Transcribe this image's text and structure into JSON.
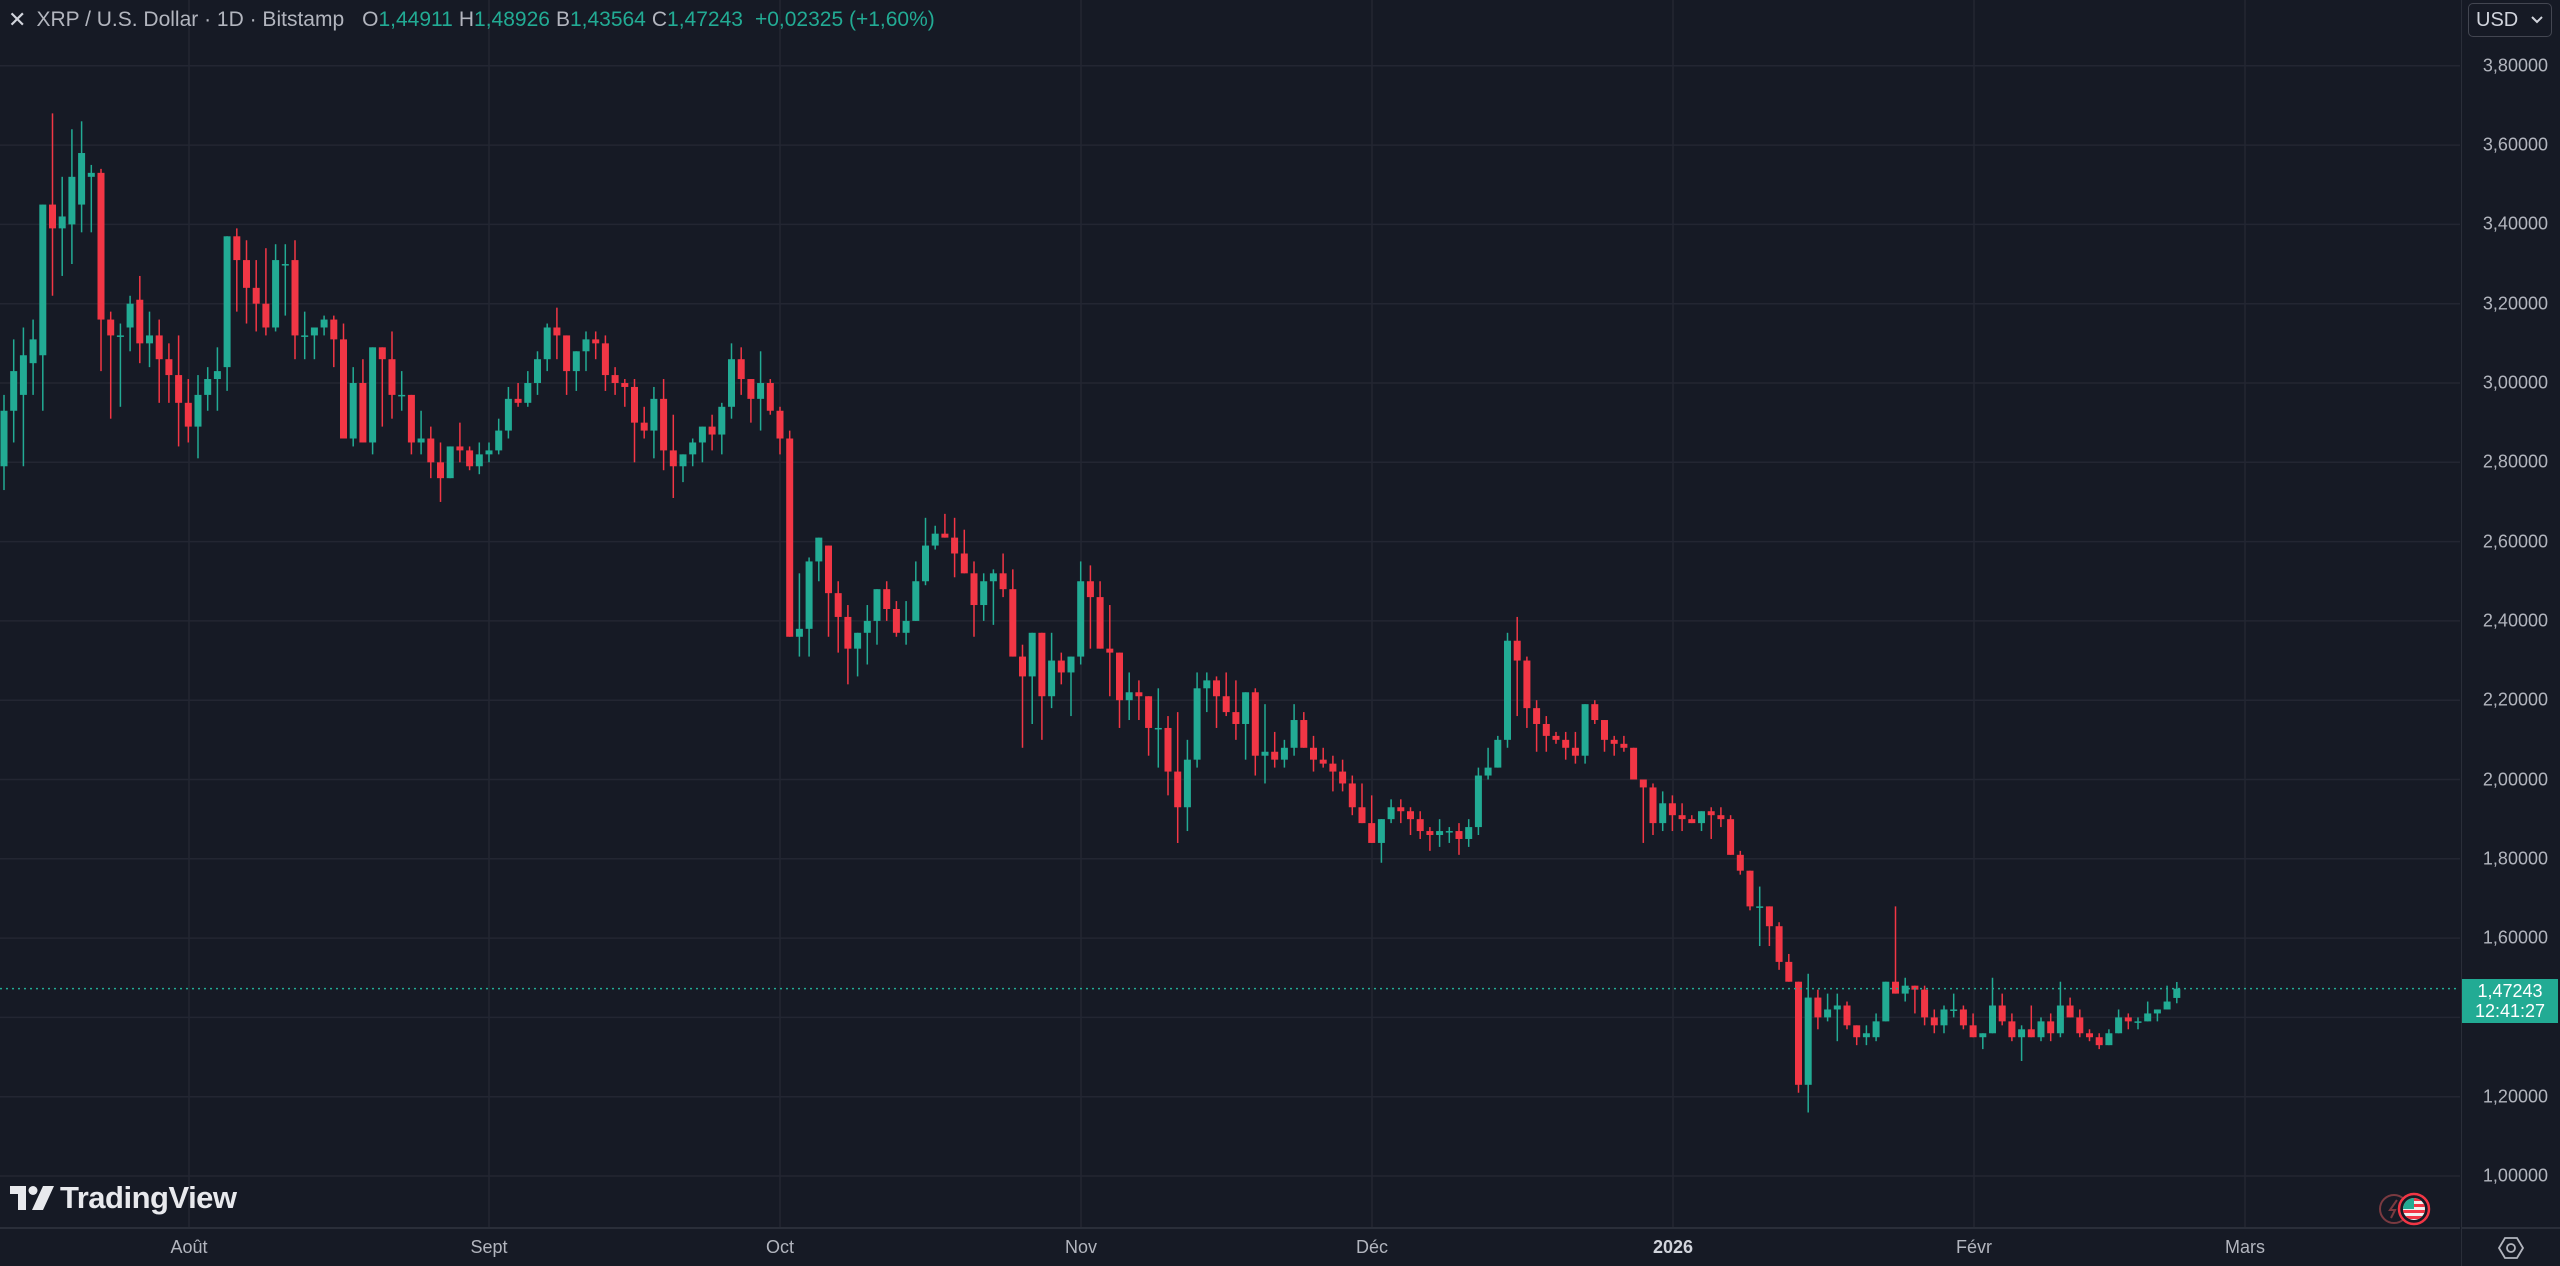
{
  "header": {
    "close_icon": "x-icon",
    "title": "XRP / U.S. Dollar · 1D · Bitstamp",
    "open_label": "O",
    "open_value": "1,44911",
    "high_label": "H",
    "high_value": "1,48926",
    "low_label": "B",
    "low_value": "1,43564",
    "close_label": "C",
    "close_value": "1,47243",
    "change": "+0,02325 (+1,60%)"
  },
  "price_axis": {
    "currency": "USD",
    "ticks": [
      "3,80000",
      "3,60000",
      "3,40000",
      "3,20000",
      "3,00000",
      "2,80000",
      "2,60000",
      "2,40000",
      "2,20000",
      "2,00000",
      "1,80000",
      "1,60000",
      "1,20000",
      "1,00000"
    ],
    "current_price": "1,47243",
    "countdown": "12:41:27"
  },
  "time_axis": {
    "ticks": [
      {
        "label": "Août",
        "bold": false
      },
      {
        "label": "Sept",
        "bold": false
      },
      {
        "label": "Oct",
        "bold": false
      },
      {
        "label": "Nov",
        "bold": false
      },
      {
        "label": "Déc",
        "bold": false
      },
      {
        "label": "2026",
        "bold": true
      },
      {
        "label": "Févr",
        "bold": false
      },
      {
        "label": "Mars",
        "bold": false
      }
    ]
  },
  "branding": {
    "logo_text": "TradingView"
  },
  "colors": {
    "up": "#22ab94",
    "down": "#f23645",
    "background": "#161a25",
    "grid": "#232632",
    "text": "#b2b5be"
  },
  "chart_data": {
    "type": "candlestick",
    "title": "XRP / U.S. Dollar · 1D · Bitstamp",
    "xlabel": "",
    "ylabel": "USD",
    "ylim": [
      0.93,
      3.87
    ],
    "grid": true,
    "x_ticks": [
      "Août",
      "Sept",
      "Oct",
      "Nov",
      "Déc",
      "2026",
      "Févr",
      "Mars"
    ],
    "y_ticks": [
      1.0,
      1.2,
      1.4,
      1.6,
      1.8,
      2.0,
      2.2,
      2.4,
      2.6,
      2.8,
      3.0,
      3.2,
      3.4,
      3.6,
      3.8
    ],
    "last": {
      "open": 1.44911,
      "high": 1.48926,
      "low": 1.43564,
      "close": 1.47243,
      "change": 0.02325,
      "change_pct": 1.6
    },
    "ohlc": [
      [
        2.79,
        2.97,
        2.73,
        2.93
      ],
      [
        2.93,
        3.11,
        2.85,
        3.03
      ],
      [
        2.97,
        3.14,
        2.79,
        3.07
      ],
      [
        3.05,
        3.16,
        2.97,
        3.11
      ],
      [
        3.07,
        3.23,
        2.93,
        3.45
      ],
      [
        3.45,
        3.68,
        3.22,
        3.39
      ],
      [
        3.39,
        3.52,
        3.27,
        3.42
      ],
      [
        3.4,
        3.64,
        3.3,
        3.52
      ],
      [
        3.45,
        3.66,
        3.38,
        3.58
      ],
      [
        3.52,
        3.55,
        3.38,
        3.53
      ],
      [
        3.53,
        3.54,
        3.03,
        3.16
      ],
      [
        3.16,
        3.18,
        2.91,
        3.12
      ],
      [
        3.12,
        3.15,
        2.94,
        3.12
      ],
      [
        3.14,
        3.22,
        3.08,
        3.2
      ],
      [
        3.21,
        3.27,
        3.05,
        3.1
      ],
      [
        3.1,
        3.18,
        3.04,
        3.12
      ],
      [
        3.12,
        3.16,
        2.95,
        3.06
      ],
      [
        3.06,
        3.1,
        2.95,
        3.02
      ],
      [
        3.02,
        3.12,
        2.84,
        2.95
      ],
      [
        2.95,
        3.01,
        2.85,
        2.89
      ],
      [
        2.89,
        3.02,
        2.81,
        2.97
      ],
      [
        2.97,
        3.04,
        2.93,
        3.01
      ],
      [
        3.01,
        3.09,
        2.93,
        3.03
      ],
      [
        3.04,
        3.37,
        2.98,
        3.37
      ],
      [
        3.37,
        3.39,
        3.18,
        3.31
      ],
      [
        3.31,
        3.36,
        3.15,
        3.24
      ],
      [
        3.24,
        3.31,
        3.13,
        3.2
      ],
      [
        3.2,
        3.34,
        3.12,
        3.14
      ],
      [
        3.14,
        3.35,
        3.13,
        3.31
      ],
      [
        3.3,
        3.35,
        3.17,
        3.3
      ],
      [
        3.31,
        3.36,
        3.06,
        3.12
      ],
      [
        3.12,
        3.18,
        3.06,
        3.12
      ],
      [
        3.12,
        3.14,
        3.06,
        3.14
      ],
      [
        3.14,
        3.17,
        3.12,
        3.16
      ],
      [
        3.16,
        3.17,
        3.04,
        3.11
      ],
      [
        3.11,
        3.15,
        2.96,
        2.86
      ],
      [
        2.86,
        3.04,
        2.84,
        3.0
      ],
      [
        3.0,
        3.06,
        2.91,
        2.85
      ],
      [
        2.85,
        3.08,
        2.82,
        3.09
      ],
      [
        3.09,
        3.05,
        2.89,
        3.06
      ],
      [
        3.06,
        3.13,
        2.91,
        2.97
      ],
      [
        2.97,
        3.03,
        2.93,
        2.97
      ],
      [
        2.97,
        2.97,
        2.82,
        2.85
      ],
      [
        2.85,
        2.93,
        2.82,
        2.86
      ],
      [
        2.86,
        2.89,
        2.76,
        2.8
      ],
      [
        2.8,
        2.85,
        2.7,
        2.76
      ],
      [
        2.76,
        2.81,
        2.76,
        2.84
      ],
      [
        2.84,
        2.9,
        2.8,
        2.83
      ],
      [
        2.83,
        2.84,
        2.78,
        2.79
      ],
      [
        2.79,
        2.85,
        2.77,
        2.82
      ],
      [
        2.82,
        2.85,
        2.8,
        2.83
      ],
      [
        2.83,
        2.91,
        2.82,
        2.88
      ],
      [
        2.88,
        2.99,
        2.86,
        2.96
      ],
      [
        2.96,
        3.0,
        2.94,
        2.95
      ],
      [
        2.95,
        3.03,
        2.94,
        3.0
      ],
      [
        3.0,
        3.08,
        2.97,
        3.06
      ],
      [
        3.06,
        3.15,
        3.03,
        3.14
      ],
      [
        3.14,
        3.19,
        3.06,
        3.12
      ],
      [
        3.12,
        3.1,
        2.97,
        3.03
      ],
      [
        3.03,
        3.08,
        2.98,
        3.08
      ],
      [
        3.08,
        3.13,
        3.03,
        3.11
      ],
      [
        3.11,
        3.13,
        3.06,
        3.1
      ],
      [
        3.1,
        3.12,
        2.98,
        3.02
      ],
      [
        3.02,
        3.04,
        2.97,
        3.0
      ],
      [
        3.0,
        3.01,
        2.94,
        2.99
      ],
      [
        2.99,
        3.01,
        2.8,
        2.9
      ],
      [
        2.9,
        2.94,
        2.86,
        2.88
      ],
      [
        2.88,
        2.99,
        2.81,
        2.96
      ],
      [
        2.96,
        3.01,
        2.78,
        2.83
      ],
      [
        2.83,
        2.92,
        2.71,
        2.79
      ],
      [
        2.79,
        2.82,
        2.75,
        2.82
      ],
      [
        2.82,
        2.86,
        2.79,
        2.85
      ],
      [
        2.85,
        2.88,
        2.8,
        2.89
      ],
      [
        2.89,
        2.92,
        2.83,
        2.87
      ],
      [
        2.87,
        2.95,
        2.82,
        2.94
      ],
      [
        2.94,
        3.1,
        2.91,
        3.06
      ],
      [
        3.06,
        3.09,
        2.97,
        3.01
      ],
      [
        3.01,
        3.01,
        2.9,
        2.96
      ],
      [
        2.96,
        3.08,
        2.88,
        3.0
      ],
      [
        3.0,
        3.01,
        2.92,
        2.93
      ],
      [
        2.93,
        2.94,
        2.82,
        2.86
      ],
      [
        2.86,
        2.88,
        2.48,
        2.36
      ],
      [
        2.36,
        2.52,
        2.31,
        2.38
      ],
      [
        2.38,
        2.56,
        2.31,
        2.55
      ],
      [
        2.55,
        2.61,
        2.5,
        2.61
      ],
      [
        2.59,
        2.57,
        2.36,
        2.47
      ],
      [
        2.47,
        2.5,
        2.32,
        2.41
      ],
      [
        2.41,
        2.44,
        2.24,
        2.33
      ],
      [
        2.33,
        2.36,
        2.26,
        2.37
      ],
      [
        2.37,
        2.44,
        2.29,
        2.4
      ],
      [
        2.4,
        2.46,
        2.34,
        2.48
      ],
      [
        2.48,
        2.5,
        2.4,
        2.43
      ],
      [
        2.43,
        2.45,
        2.36,
        2.37
      ],
      [
        2.37,
        2.45,
        2.34,
        2.4
      ],
      [
        2.4,
        2.55,
        2.41,
        2.5
      ],
      [
        2.5,
        2.66,
        2.49,
        2.59
      ],
      [
        2.59,
        2.64,
        2.58,
        2.62
      ],
      [
        2.62,
        2.67,
        2.61,
        2.61
      ],
      [
        2.61,
        2.66,
        2.51,
        2.57
      ],
      [
        2.57,
        2.63,
        2.54,
        2.52
      ],
      [
        2.52,
        2.55,
        2.36,
        2.44
      ],
      [
        2.44,
        2.52,
        2.4,
        2.5
      ],
      [
        2.5,
        2.53,
        2.39,
        2.52
      ],
      [
        2.52,
        2.57,
        2.46,
        2.48
      ],
      [
        2.48,
        2.53,
        2.31,
        2.31
      ],
      [
        2.31,
        2.34,
        2.08,
        2.26
      ],
      [
        2.26,
        2.37,
        2.14,
        2.37
      ],
      [
        2.37,
        2.37,
        2.1,
        2.21
      ],
      [
        2.21,
        2.37,
        2.18,
        2.3
      ],
      [
        2.3,
        2.32,
        2.24,
        2.27
      ],
      [
        2.27,
        2.3,
        2.16,
        2.31
      ],
      [
        2.31,
        2.55,
        2.29,
        2.5
      ],
      [
        2.5,
        2.54,
        2.33,
        2.46
      ],
      [
        2.46,
        2.5,
        2.34,
        2.33
      ],
      [
        2.33,
        2.44,
        2.21,
        2.32
      ],
      [
        2.32,
        2.27,
        2.13,
        2.2
      ],
      [
        2.2,
        2.27,
        2.15,
        2.22
      ],
      [
        2.22,
        2.25,
        2.15,
        2.21
      ],
      [
        2.21,
        2.21,
        2.06,
        2.13
      ],
      [
        2.13,
        2.23,
        2.03,
        2.13
      ],
      [
        2.13,
        2.16,
        1.96,
        2.02
      ],
      [
        2.02,
        2.17,
        1.84,
        1.93
      ],
      [
        1.93,
        2.1,
        1.87,
        2.05
      ],
      [
        2.05,
        2.27,
        2.03,
        2.23
      ],
      [
        2.23,
        2.27,
        2.17,
        2.25
      ],
      [
        2.25,
        2.26,
        2.13,
        2.21
      ],
      [
        2.21,
        2.27,
        2.16,
        2.17
      ],
      [
        2.17,
        2.25,
        2.1,
        2.14
      ],
      [
        2.14,
        2.17,
        2.05,
        2.22
      ],
      [
        2.22,
        2.23,
        2.01,
        2.06
      ],
      [
        2.06,
        2.19,
        1.99,
        2.07
      ],
      [
        2.07,
        2.12,
        2.03,
        2.05
      ],
      [
        2.05,
        2.1,
        2.03,
        2.08
      ],
      [
        2.08,
        2.19,
        2.06,
        2.15
      ],
      [
        2.15,
        2.17,
        2.09,
        2.08
      ],
      [
        2.08,
        2.11,
        2.02,
        2.05
      ],
      [
        2.05,
        2.08,
        2.03,
        2.04
      ],
      [
        2.04,
        2.06,
        1.97,
        2.02
      ],
      [
        2.02,
        2.05,
        1.97,
        1.99
      ],
      [
        1.99,
        2.01,
        1.91,
        1.93
      ],
      [
        1.93,
        1.99,
        1.9,
        1.89
      ],
      [
        1.89,
        1.96,
        1.84,
        1.84
      ],
      [
        1.84,
        1.9,
        1.79,
        1.9
      ],
      [
        1.9,
        1.95,
        1.89,
        1.93
      ],
      [
        1.93,
        1.95,
        1.89,
        1.92
      ],
      [
        1.92,
        1.93,
        1.86,
        1.9
      ],
      [
        1.9,
        1.92,
        1.85,
        1.87
      ],
      [
        1.87,
        1.88,
        1.82,
        1.86
      ],
      [
        1.86,
        1.9,
        1.83,
        1.87
      ],
      [
        1.87,
        1.88,
        1.84,
        1.87
      ],
      [
        1.87,
        1.89,
        1.81,
        1.85
      ],
      [
        1.85,
        1.9,
        1.83,
        1.88
      ],
      [
        1.88,
        2.03,
        1.86,
        2.01
      ],
      [
        2.01,
        2.08,
        2.0,
        2.03
      ],
      [
        2.03,
        2.11,
        2.03,
        2.1
      ],
      [
        2.1,
        2.37,
        2.08,
        2.35
      ],
      [
        2.35,
        2.41,
        2.16,
        2.3
      ],
      [
        2.3,
        2.31,
        2.13,
        2.18
      ],
      [
        2.18,
        2.2,
        2.07,
        2.14
      ],
      [
        2.14,
        2.16,
        2.07,
        2.11
      ],
      [
        2.11,
        2.12,
        2.09,
        2.1
      ],
      [
        2.1,
        2.12,
        2.05,
        2.08
      ],
      [
        2.08,
        2.12,
        2.04,
        2.06
      ],
      [
        2.06,
        2.19,
        2.04,
        2.19
      ],
      [
        2.19,
        2.2,
        2.14,
        2.15
      ],
      [
        2.15,
        2.15,
        2.07,
        2.1
      ],
      [
        2.1,
        2.11,
        2.06,
        2.09
      ],
      [
        2.09,
        2.11,
        2.07,
        2.08
      ],
      [
        2.08,
        2.08,
        2.01,
        2.0
      ],
      [
        2.0,
        2.0,
        1.84,
        1.98
      ],
      [
        1.98,
        1.99,
        1.86,
        1.89
      ],
      [
        1.89,
        1.97,
        1.87,
        1.94
      ],
      [
        1.94,
        1.96,
        1.87,
        1.91
      ],
      [
        1.91,
        1.94,
        1.87,
        1.9
      ],
      [
        1.9,
        1.91,
        1.89,
        1.89
      ],
      [
        1.89,
        1.92,
        1.87,
        1.92
      ],
      [
        1.92,
        1.93,
        1.85,
        1.91
      ],
      [
        1.91,
        1.93,
        1.88,
        1.9
      ],
      [
        1.9,
        1.91,
        1.81,
        1.81
      ],
      [
        1.81,
        1.82,
        1.76,
        1.77
      ],
      [
        1.77,
        1.75,
        1.67,
        1.68
      ],
      [
        1.68,
        1.73,
        1.58,
        1.68
      ],
      [
        1.68,
        1.66,
        1.58,
        1.63
      ],
      [
        1.63,
        1.64,
        1.52,
        1.54
      ],
      [
        1.54,
        1.56,
        1.49,
        1.49
      ],
      [
        1.49,
        1.49,
        1.21,
        1.23
      ],
      [
        1.23,
        1.51,
        1.16,
        1.45
      ],
      [
        1.45,
        1.47,
        1.37,
        1.4
      ],
      [
        1.4,
        1.46,
        1.39,
        1.42
      ],
      [
        1.42,
        1.46,
        1.34,
        1.43
      ],
      [
        1.43,
        1.44,
        1.37,
        1.38
      ],
      [
        1.38,
        1.38,
        1.33,
        1.35
      ],
      [
        1.35,
        1.38,
        1.33,
        1.36
      ],
      [
        1.35,
        1.41,
        1.34,
        1.39
      ],
      [
        1.39,
        1.49,
        1.39,
        1.49
      ],
      [
        1.49,
        1.68,
        1.46,
        1.46
      ],
      [
        1.46,
        1.5,
        1.44,
        1.48
      ],
      [
        1.48,
        1.48,
        1.41,
        1.47
      ],
      [
        1.47,
        1.48,
        1.38,
        1.4
      ],
      [
        1.4,
        1.42,
        1.36,
        1.38
      ],
      [
        1.38,
        1.43,
        1.36,
        1.42
      ],
      [
        1.42,
        1.46,
        1.4,
        1.42
      ],
      [
        1.42,
        1.43,
        1.37,
        1.38
      ],
      [
        1.38,
        1.41,
        1.35,
        1.35
      ],
      [
        1.35,
        1.36,
        1.32,
        1.36
      ],
      [
        1.36,
        1.5,
        1.36,
        1.43
      ],
      [
        1.43,
        1.46,
        1.38,
        1.39
      ],
      [
        1.39,
        1.41,
        1.34,
        1.35
      ],
      [
        1.35,
        1.38,
        1.29,
        1.37
      ],
      [
        1.37,
        1.43,
        1.35,
        1.35
      ],
      [
        1.35,
        1.4,
        1.34,
        1.39
      ],
      [
        1.39,
        1.41,
        1.34,
        1.36
      ],
      [
        1.36,
        1.49,
        1.35,
        1.43
      ],
      [
        1.43,
        1.45,
        1.4,
        1.4
      ],
      [
        1.4,
        1.42,
        1.35,
        1.36
      ],
      [
        1.36,
        1.37,
        1.34,
        1.35
      ],
      [
        1.35,
        1.36,
        1.32,
        1.33
      ],
      [
        1.33,
        1.37,
        1.33,
        1.36
      ],
      [
        1.36,
        1.42,
        1.36,
        1.4
      ],
      [
        1.4,
        1.41,
        1.37,
        1.39
      ],
      [
        1.39,
        1.4,
        1.37,
        1.39
      ],
      [
        1.39,
        1.44,
        1.39,
        1.41
      ],
      [
        1.41,
        1.42,
        1.39,
        1.42
      ],
      [
        1.42,
        1.48,
        1.42,
        1.44
      ],
      [
        1.44911,
        1.48926,
        1.43564,
        1.47243
      ]
    ]
  }
}
